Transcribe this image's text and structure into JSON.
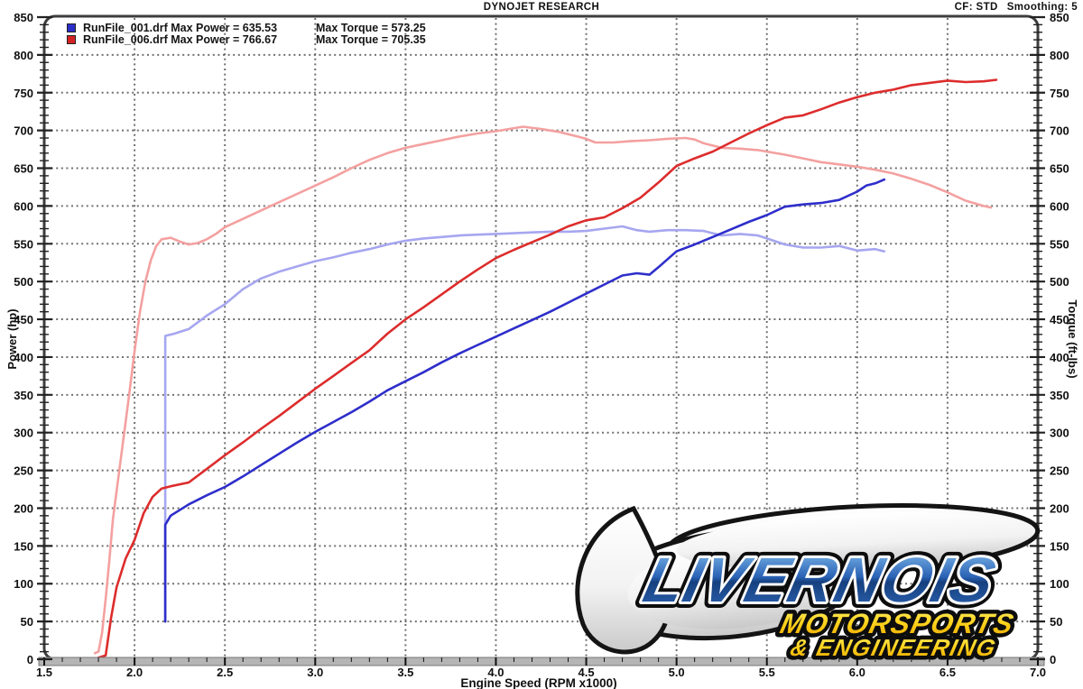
{
  "header": {
    "title": "DYNOJET RESEARCH",
    "cf": "CF: STD",
    "smoothing": "Smoothing: 5"
  },
  "legend": {
    "rows": [
      {
        "swatch_color": "#2b2fc7",
        "file_and_power": "RunFile_001.drf Max Power = 635.53",
        "torque": "Max Torque = 573.25"
      },
      {
        "swatch_color": "#d42222",
        "file_and_power": "RunFile_006.drf Max Power = 766.67",
        "torque": "Max Torque = 705.35"
      }
    ]
  },
  "axes": {
    "x": {
      "label": "Engine Speed (RPM x1000)",
      "min": 1.5,
      "max": 7.0,
      "ticks": [
        "1.5",
        "2.0",
        "2.5",
        "3.0",
        "3.5",
        "4.0",
        "4.5",
        "5.0",
        "5.5",
        "6.0",
        "6.5",
        "7.0"
      ]
    },
    "y_left": {
      "label": "Power (hp)",
      "min": 0,
      "max": 850,
      "ticks": [
        "0",
        "50",
        "100",
        "150",
        "200",
        "250",
        "300",
        "350",
        "400",
        "450",
        "500",
        "550",
        "600",
        "650",
        "700",
        "750",
        "800",
        "850"
      ]
    },
    "y_right": {
      "label": "Torque (ft-lbs)",
      "min": 0,
      "max": 850
    }
  },
  "chart_data": {
    "type": "line",
    "xlabel": "Engine Speed (RPM x1000)",
    "ylabel_left": "Power (hp)",
    "ylabel_right": "Torque (ft-lbs)",
    "x_range": [
      1.5,
      7.0
    ],
    "y_range": [
      0,
      850
    ],
    "grid": "dotted",
    "series": [
      {
        "name": "RunFile_006.drf Torque (ft-lbs)",
        "color": "#f4a0a0",
        "max": 705.35,
        "points": [
          [
            1.78,
            8
          ],
          [
            1.8,
            10
          ],
          [
            1.82,
            35
          ],
          [
            1.84,
            80
          ],
          [
            1.86,
            130
          ],
          [
            1.88,
            185
          ],
          [
            1.91,
            240
          ],
          [
            1.94,
            295
          ],
          [
            1.97,
            350
          ],
          [
            2.0,
            408
          ],
          [
            2.03,
            460
          ],
          [
            2.06,
            500
          ],
          [
            2.09,
            528
          ],
          [
            2.12,
            547
          ],
          [
            2.15,
            556
          ],
          [
            2.2,
            558
          ],
          [
            2.25,
            553
          ],
          [
            2.3,
            549
          ],
          [
            2.35,
            551
          ],
          [
            2.4,
            556
          ],
          [
            2.45,
            563
          ],
          [
            2.5,
            572
          ],
          [
            2.6,
            583
          ],
          [
            2.7,
            594
          ],
          [
            2.8,
            605
          ],
          [
            2.9,
            616
          ],
          [
            3.0,
            627
          ],
          [
            3.1,
            638
          ],
          [
            3.2,
            650
          ],
          [
            3.3,
            661
          ],
          [
            3.4,
            670
          ],
          [
            3.5,
            677
          ],
          [
            3.6,
            682
          ],
          [
            3.7,
            687
          ],
          [
            3.8,
            692
          ],
          [
            3.9,
            696
          ],
          [
            4.0,
            699
          ],
          [
            4.1,
            703
          ],
          [
            4.15,
            705
          ],
          [
            4.25,
            702
          ],
          [
            4.35,
            698
          ],
          [
            4.45,
            692
          ],
          [
            4.5,
            689
          ],
          [
            4.55,
            684
          ],
          [
            4.65,
            684
          ],
          [
            4.75,
            686
          ],
          [
            4.85,
            687
          ],
          [
            4.95,
            689
          ],
          [
            5.05,
            690
          ],
          [
            5.1,
            688
          ],
          [
            5.15,
            683
          ],
          [
            5.25,
            677
          ],
          [
            5.35,
            676
          ],
          [
            5.45,
            674
          ],
          [
            5.5,
            672
          ],
          [
            5.6,
            668
          ],
          [
            5.7,
            663
          ],
          [
            5.8,
            658
          ],
          [
            5.9,
            655
          ],
          [
            6.0,
            652
          ],
          [
            6.1,
            648
          ],
          [
            6.2,
            643
          ],
          [
            6.3,
            636
          ],
          [
            6.4,
            628
          ],
          [
            6.5,
            618
          ],
          [
            6.6,
            607
          ],
          [
            6.7,
            600
          ],
          [
            6.74,
            598
          ]
        ]
      },
      {
        "name": "RunFile_001.drf Torque (ft-lbs)",
        "color": "#a6a6f0",
        "max": 573.25,
        "points": [
          [
            2.17,
            50
          ],
          [
            2.17,
            428
          ],
          [
            2.22,
            431
          ],
          [
            2.3,
            437
          ],
          [
            2.4,
            455
          ],
          [
            2.5,
            470
          ],
          [
            2.6,
            490
          ],
          [
            2.7,
            504
          ],
          [
            2.8,
            513
          ],
          [
            2.9,
            520
          ],
          [
            3.0,
            527
          ],
          [
            3.1,
            532
          ],
          [
            3.2,
            538
          ],
          [
            3.3,
            543
          ],
          [
            3.4,
            549
          ],
          [
            3.5,
            554
          ],
          [
            3.6,
            557
          ],
          [
            3.7,
            559
          ],
          [
            3.8,
            561
          ],
          [
            3.9,
            562
          ],
          [
            4.0,
            563
          ],
          [
            4.1,
            564
          ],
          [
            4.2,
            565
          ],
          [
            4.3,
            566
          ],
          [
            4.4,
            566
          ],
          [
            4.5,
            567
          ],
          [
            4.6,
            570
          ],
          [
            4.7,
            573
          ],
          [
            4.78,
            568
          ],
          [
            4.85,
            566
          ],
          [
            4.95,
            568
          ],
          [
            5.05,
            568
          ],
          [
            5.15,
            567
          ],
          [
            5.25,
            561
          ],
          [
            5.35,
            563
          ],
          [
            5.45,
            561
          ],
          [
            5.5,
            557
          ],
          [
            5.6,
            549
          ],
          [
            5.7,
            545
          ],
          [
            5.8,
            545
          ],
          [
            5.9,
            547
          ],
          [
            6.0,
            541
          ],
          [
            6.1,
            543
          ],
          [
            6.15,
            540
          ]
        ]
      },
      {
        "name": "RunFile_006.drf Power (hp)",
        "color": "#dd2c2c",
        "max": 766.67,
        "points": [
          [
            1.8,
            2
          ],
          [
            1.84,
            5
          ],
          [
            1.87,
            55
          ],
          [
            1.9,
            95
          ],
          [
            1.95,
            133
          ],
          [
            2.0,
            158
          ],
          [
            2.05,
            193
          ],
          [
            2.1,
            215
          ],
          [
            2.15,
            226
          ],
          [
            2.2,
            229
          ],
          [
            2.3,
            234
          ],
          [
            2.4,
            252
          ],
          [
            2.5,
            270
          ],
          [
            2.6,
            287
          ],
          [
            2.7,
            305
          ],
          [
            2.8,
            322
          ],
          [
            2.9,
            340
          ],
          [
            3.0,
            358
          ],
          [
            3.1,
            375
          ],
          [
            3.2,
            392
          ],
          [
            3.3,
            409
          ],
          [
            3.4,
            431
          ],
          [
            3.5,
            450
          ],
          [
            3.6,
            466
          ],
          [
            3.7,
            483
          ],
          [
            3.8,
            500
          ],
          [
            3.9,
            516
          ],
          [
            4.0,
            531
          ],
          [
            4.1,
            542
          ],
          [
            4.2,
            552
          ],
          [
            4.3,
            562
          ],
          [
            4.4,
            573
          ],
          [
            4.5,
            581
          ],
          [
            4.6,
            585
          ],
          [
            4.7,
            597
          ],
          [
            4.8,
            611
          ],
          [
            4.9,
            631
          ],
          [
            5.0,
            653
          ],
          [
            5.1,
            663
          ],
          [
            5.2,
            672
          ],
          [
            5.3,
            684
          ],
          [
            5.4,
            696
          ],
          [
            5.5,
            707
          ],
          [
            5.6,
            717
          ],
          [
            5.7,
            720
          ],
          [
            5.8,
            728
          ],
          [
            5.9,
            737
          ],
          [
            6.0,
            744
          ],
          [
            6.1,
            750
          ],
          [
            6.2,
            754
          ],
          [
            6.3,
            760
          ],
          [
            6.4,
            763
          ],
          [
            6.5,
            766
          ],
          [
            6.6,
            764
          ],
          [
            6.7,
            765
          ],
          [
            6.77,
            767
          ]
        ]
      },
      {
        "name": "RunFile_001.drf Power (hp)",
        "color": "#2e2ecb",
        "max": 635.53,
        "points": [
          [
            2.17,
            50
          ],
          [
            2.17,
            178
          ],
          [
            2.2,
            190
          ],
          [
            2.3,
            205
          ],
          [
            2.4,
            217
          ],
          [
            2.5,
            228
          ],
          [
            2.6,
            242
          ],
          [
            2.7,
            257
          ],
          [
            2.8,
            272
          ],
          [
            2.9,
            287
          ],
          [
            3.0,
            301
          ],
          [
            3.1,
            314
          ],
          [
            3.2,
            327
          ],
          [
            3.3,
            341
          ],
          [
            3.4,
            356
          ],
          [
            3.5,
            368
          ],
          [
            3.6,
            380
          ],
          [
            3.7,
            393
          ],
          [
            3.8,
            405
          ],
          [
            3.9,
            416
          ],
          [
            4.0,
            427
          ],
          [
            4.1,
            438
          ],
          [
            4.2,
            449
          ],
          [
            4.3,
            460
          ],
          [
            4.4,
            472
          ],
          [
            4.5,
            484
          ],
          [
            4.6,
            496
          ],
          [
            4.7,
            508
          ],
          [
            4.78,
            511
          ],
          [
            4.85,
            509
          ],
          [
            4.9,
            519
          ],
          [
            5.0,
            540
          ],
          [
            5.1,
            549
          ],
          [
            5.2,
            559
          ],
          [
            5.3,
            569
          ],
          [
            5.4,
            579
          ],
          [
            5.5,
            588
          ],
          [
            5.6,
            599
          ],
          [
            5.7,
            602
          ],
          [
            5.8,
            604
          ],
          [
            5.9,
            608
          ],
          [
            6.0,
            619
          ],
          [
            6.05,
            627
          ],
          [
            6.1,
            630
          ],
          [
            6.15,
            635
          ]
        ]
      }
    ]
  },
  "watermark": {
    "line1": "LIVERNOIS",
    "line2": "MOTORSPORTS",
    "line3": "& ENGINEERING"
  }
}
